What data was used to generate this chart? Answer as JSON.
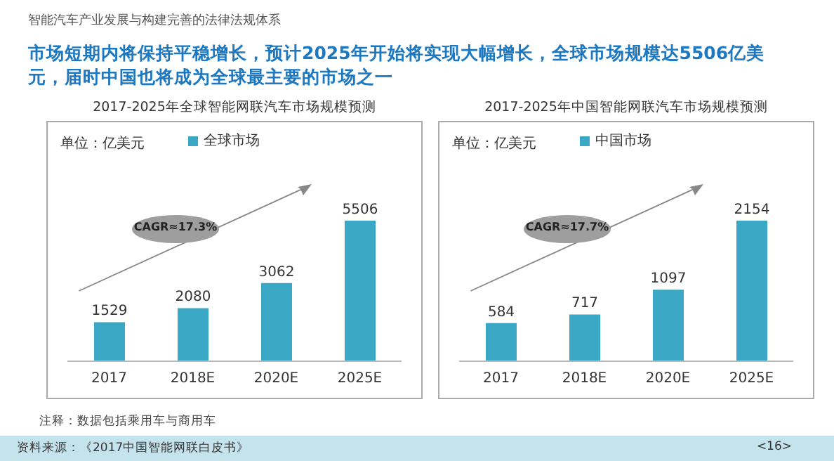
{
  "chart_data": [
    {
      "type": "bar",
      "title": "2017-2025年全球智能网联汽车市场规模预测",
      "categories": [
        "2017",
        "2018E",
        "2020E",
        "2025E"
      ],
      "series": [
        {
          "name": "全球市场",
          "color": "#3aa7c5",
          "values": [
            1529,
            2080,
            3062,
            5506
          ]
        }
      ],
      "data_labels": true,
      "legend": "top left",
      "tick_labels": "x",
      "annotations": [
        "单位：亿美元",
        "CAGR≈17.3%",
        "智能汽车产业发展与构建完善的法律法规体系",
        "市场短期内将保持平稳增长，预计2025年开始将实现大幅增长，全球市场规模达5506亿美元，届时中国也将成为全球最主要的市场之一",
        "注释：数据包括乘用车与商用车",
        "资料来源：《2017中国智能网联白皮书》",
        "<16>"
      ]
    },
    {
      "type": "bar",
      "title": "2017-2025年中国智能网联汽车市场规模预测",
      "categories": [
        "2017",
        "2018E",
        "2020E",
        "2025E"
      ],
      "series": [
        {
          "name": "中国市场",
          "color": "#3aa7c5",
          "values": [
            584,
            717,
            1097,
            2154
          ]
        }
      ],
      "data_labels": true,
      "legend": "top left",
      "tick_labels": "x",
      "annotations": [
        "单位：亿美元",
        "CAGR≈17.7%"
      ]
    }
  ]
}
